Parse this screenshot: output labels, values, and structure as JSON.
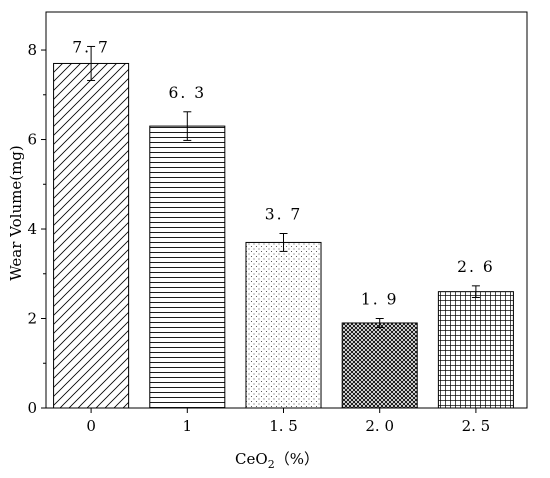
{
  "chart_data": {
    "type": "bar",
    "categories": [
      "0",
      "1",
      "1.5",
      "2.0",
      "2.5"
    ],
    "category_labels": [
      "0",
      "1",
      "1. 5",
      "2. 0",
      "2. 5"
    ],
    "values": [
      7.7,
      6.3,
      3.7,
      1.9,
      2.6
    ],
    "value_labels": [
      "7. 7",
      "6. 3",
      "3. 7",
      "1. 9",
      "2. 6"
    ],
    "error": [
      0.38,
      0.32,
      0.2,
      0.1,
      0.13
    ],
    "patterns": [
      "diagonal",
      "horizontal",
      "dots",
      "crosshatch",
      "grid"
    ],
    "xlabel": {
      "main": "CeO",
      "sub": "2",
      "unit": "（%）"
    },
    "ylabel": "Wear Volume(mg)",
    "ylim": [
      0,
      8.85
    ],
    "yticks": [
      0,
      2,
      4,
      6,
      8
    ],
    "grid": false,
    "bar_edge_color": "#000000"
  }
}
